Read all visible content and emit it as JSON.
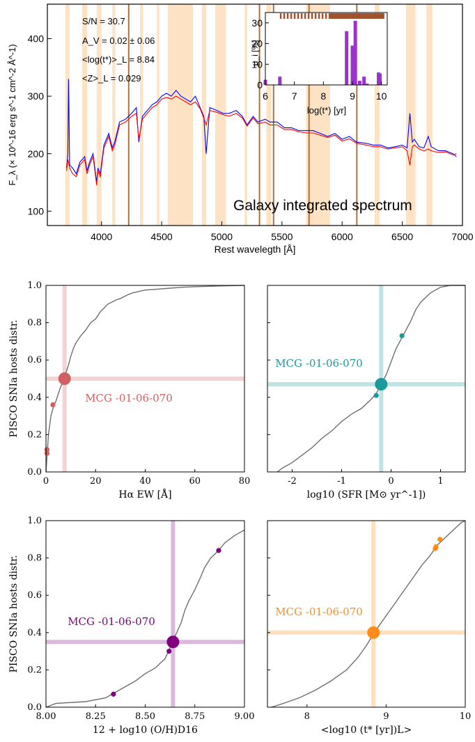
{
  "chart_data": [
    {
      "type": "line",
      "title": "Galaxy integrated spectrum",
      "xlabel": "Rest wavelegth [Å]",
      "ylabel": "F_λ (× 10^-16 erg s^-1 cm^-2 Å^-1)",
      "xlim": [
        3550,
        7000
      ],
      "ylim": [
        75,
        460
      ],
      "xticks": [
        4000,
        4500,
        5000,
        5500,
        6000,
        6500,
        7000
      ],
      "yticks": [
        100,
        200,
        300,
        400
      ],
      "annotations": [
        "S/N = 30.7",
        "A_V = 0.02 ± 0.06",
        "<log(t*)>_L = 8.84",
        "<Z>_L = 0.029"
      ],
      "masked_bands": [
        [
          3700,
          3735
        ],
        [
          3840,
          3880
        ],
        [
          3960,
          4000
        ],
        [
          4090,
          4115
        ],
        [
          4320,
          4345
        ],
        [
          4460,
          4480
        ],
        [
          4550,
          4760
        ],
        [
          4835,
          4870
        ],
        [
          4945,
          5035
        ],
        [
          5190,
          5210
        ],
        [
          5370,
          5410
        ],
        [
          5700,
          5900
        ],
        [
          6270,
          6310
        ],
        [
          6530,
          6610
        ],
        [
          6700,
          6750
        ]
      ],
      "marked_lines": [
        4226,
        5313,
        5430,
        5725,
        6122
      ],
      "series": [
        {
          "name": "",
          "color": "#0000ff",
          "x": [
            3710,
            3720,
            3726,
            3735,
            3760,
            3790,
            3820,
            3860,
            3880,
            3900,
            3930,
            3960,
            3970,
            3990,
            4020,
            4060,
            4090,
            4110,
            4150,
            4200,
            4250,
            4290,
            4310,
            4340,
            4380,
            4420,
            4460,
            4500,
            4540,
            4580,
            4620,
            4660,
            4700,
            4740,
            4780,
            4820,
            4850,
            4870,
            4900,
            4960,
            5010,
            5060,
            5120,
            5170,
            5210,
            5260,
            5300,
            5360,
            5400,
            5460,
            5520,
            5580,
            5640,
            5700,
            5760,
            5820,
            5880,
            5940,
            6000,
            6060,
            6120,
            6200,
            6260,
            6320,
            6380,
            6440,
            6500,
            6540,
            6563,
            6583,
            6600,
            6640,
            6680,
            6716,
            6740,
            6800,
            6860,
            6920,
            6950
          ],
          "y": [
            175,
            200,
            330,
            180,
            175,
            165,
            185,
            195,
            170,
            185,
            200,
            150,
            175,
            165,
            215,
            235,
            210,
            220,
            255,
            260,
            270,
            280,
            220,
            265,
            275,
            285,
            290,
            300,
            305,
            300,
            310,
            300,
            295,
            290,
            300,
            280,
            265,
            200,
            280,
            275,
            270,
            270,
            275,
            265,
            250,
            265,
            255,
            260,
            255,
            255,
            245,
            245,
            240,
            240,
            240,
            235,
            230,
            235,
            225,
            230,
            220,
            218,
            215,
            215,
            210,
            212,
            215,
            210,
            270,
            220,
            225,
            212,
            210,
            230,
            212,
            205,
            205,
            200,
            195
          ]
        },
        {
          "name": "",
          "color": "#ff0000",
          "x": [
            3710,
            3720,
            3726,
            3735,
            3760,
            3790,
            3820,
            3860,
            3880,
            3900,
            3930,
            3960,
            3970,
            3990,
            4020,
            4060,
            4090,
            4110,
            4150,
            4200,
            4250,
            4290,
            4310,
            4340,
            4380,
            4420,
            4460,
            4500,
            4540,
            4580,
            4620,
            4660,
            4700,
            4740,
            4780,
            4820,
            4850,
            4870,
            4900,
            4960,
            5010,
            5060,
            5120,
            5170,
            5210,
            5260,
            5300,
            5360,
            5400,
            5460,
            5520,
            5580,
            5640,
            5700,
            5760,
            5820,
            5880,
            5940,
            6000,
            6060,
            6120,
            6200,
            6260,
            6320,
            6380,
            6440,
            6500,
            6540,
            6563,
            6583,
            6600,
            6640,
            6680,
            6716,
            6740,
            6800,
            6860,
            6920,
            6950
          ],
          "y": [
            170,
            190,
            185,
            175,
            165,
            160,
            180,
            190,
            165,
            180,
            195,
            145,
            170,
            160,
            210,
            230,
            205,
            215,
            250,
            255,
            265,
            270,
            225,
            260,
            270,
            280,
            285,
            295,
            298,
            295,
            300,
            295,
            290,
            285,
            290,
            278,
            262,
            250,
            275,
            272,
            268,
            265,
            270,
            262,
            248,
            262,
            252,
            255,
            250,
            250,
            242,
            242,
            238,
            236,
            236,
            232,
            228,
            232,
            222,
            226,
            218,
            215,
            212,
            212,
            208,
            210,
            212,
            205,
            180,
            212,
            215,
            208,
            205,
            208,
            205,
            202,
            203,
            198,
            200
          ]
        }
      ]
    },
    {
      "type": "bar",
      "xlabel": "log(t*) [yr]",
      "ylabel": "μ_i [%]",
      "xlim": [
        6,
        10.2
      ],
      "ylim": [
        0,
        35
      ],
      "xticks": [
        6,
        7,
        8,
        9,
        10
      ],
      "yticks": [
        0,
        10,
        20,
        30
      ],
      "x": [
        6.0,
        6.5,
        8.8,
        9.0,
        9.1,
        9.25,
        9.4,
        9.5,
        9.9,
        9.95
      ],
      "values": [
        2.5,
        4,
        26,
        19,
        31,
        2,
        4,
        0.6,
        6,
        5.5
      ],
      "color": "#9933cc"
    },
    {
      "type": "line",
      "xlabel": "Hα EW [Å]",
      "ylabel": "PISCO SNIa hosts distr.",
      "xlim": [
        0,
        80
      ],
      "ylim": [
        0,
        1
      ],
      "xticks": [
        0,
        20,
        40,
        60,
        80
      ],
      "yticks": [
        0.0,
        0.2,
        0.4,
        0.6,
        0.8,
        1.0
      ],
      "label": "MCG -01-06-070",
      "color": "#d06060",
      "highlight": [
        7.5,
        0.5
      ],
      "points": [
        [
          2.8,
          0.36
        ],
        [
          0.4,
          0.12
        ],
        [
          0.4,
          0.1
        ]
      ],
      "cdf_x": [
        0,
        0.5,
        1,
        2,
        3,
        4,
        5,
        6,
        7,
        8,
        9,
        10,
        11,
        12,
        14,
        16,
        18,
        20,
        22,
        25,
        28,
        30,
        33,
        35,
        40,
        45,
        50,
        55,
        60,
        70,
        80
      ],
      "cdf_y": [
        0,
        0.1,
        0.2,
        0.3,
        0.35,
        0.38,
        0.42,
        0.46,
        0.48,
        0.53,
        0.57,
        0.62,
        0.66,
        0.69,
        0.73,
        0.76,
        0.8,
        0.82,
        0.86,
        0.9,
        0.92,
        0.93,
        0.95,
        0.96,
        0.975,
        0.98,
        0.985,
        0.99,
        0.993,
        0.997,
        1.0
      ]
    },
    {
      "type": "line",
      "xlabel": "log10 (SFR [M⊙ yr^-1])",
      "ylabel": "",
      "xlim": [
        -2.5,
        1.5
      ],
      "ylim": [
        0,
        1
      ],
      "xticks": [
        -2,
        -1,
        0,
        1
      ],
      "label": "MCG -01-06-070",
      "color": "#1a9a9a",
      "highlight": [
        -0.2,
        0.47
      ],
      "points": [
        [
          0.22,
          0.73
        ],
        [
          -0.3,
          0.41
        ]
      ],
      "cdf_x": [
        -2.3,
        -2.2,
        -2,
        -1.8,
        -1.6,
        -1.4,
        -1.2,
        -1,
        -0.8,
        -0.6,
        -0.4,
        -0.3,
        -0.2,
        -0.1,
        0,
        0.1,
        0.2,
        0.3,
        0.4,
        0.5,
        0.6,
        0.8,
        1.0,
        1.2,
        1.5
      ],
      "cdf_y": [
        0,
        0.02,
        0.05,
        0.09,
        0.13,
        0.18,
        0.22,
        0.27,
        0.31,
        0.34,
        0.39,
        0.42,
        0.47,
        0.52,
        0.59,
        0.66,
        0.71,
        0.76,
        0.81,
        0.87,
        0.91,
        0.96,
        0.99,
        1.0,
        1.0
      ]
    },
    {
      "type": "line",
      "xlabel": "12 + log10 (O/H)D16",
      "ylabel": "PISCO SNIa hosts distr.",
      "xlim": [
        8.0,
        9.0
      ],
      "ylim": [
        0,
        1
      ],
      "xticks": [
        8.0,
        8.25,
        8.5,
        8.75,
        9.0
      ],
      "yticks": [
        0.0,
        0.2,
        0.4,
        0.6,
        0.8,
        1.0
      ],
      "label": "MCG -01-06-070",
      "color": "#800080",
      "highlight": [
        8.64,
        0.35
      ],
      "points": [
        [
          8.87,
          0.84
        ],
        [
          8.62,
          0.3
        ],
        [
          8.34,
          0.07
        ]
      ],
      "cdf_x": [
        8.0,
        8.05,
        8.2,
        8.3,
        8.35,
        8.4,
        8.45,
        8.5,
        8.55,
        8.6,
        8.63,
        8.65,
        8.68,
        8.7,
        8.72,
        8.75,
        8.78,
        8.8,
        8.83,
        8.87,
        8.9,
        8.95,
        9.0
      ],
      "cdf_y": [
        0,
        0.02,
        0.03,
        0.05,
        0.08,
        0.11,
        0.14,
        0.18,
        0.21,
        0.26,
        0.33,
        0.38,
        0.45,
        0.52,
        0.57,
        0.63,
        0.7,
        0.75,
        0.8,
        0.84,
        0.88,
        0.92,
        0.95
      ]
    },
    {
      "type": "line",
      "xlabel": "<log10 (t* [yr])L>",
      "ylabel": "",
      "xlim": [
        7.5,
        10
      ],
      "ylim": [
        0,
        1
      ],
      "xticks": [
        8,
        9,
        10
      ],
      "label": "MCG -01-06-070",
      "color": "#ff8c1a",
      "highlight": [
        8.84,
        0.4
      ],
      "points": [
        [
          9.68,
          0.9
        ],
        [
          9.63,
          0.86
        ],
        [
          9.62,
          0.85
        ]
      ],
      "cdf_x": [
        7.55,
        7.7,
        7.9,
        8.1,
        8.3,
        8.5,
        8.65,
        8.75,
        8.85,
        8.95,
        9.05,
        9.15,
        9.25,
        9.35,
        9.45,
        9.55,
        9.65,
        9.75,
        9.85,
        9.95,
        10.0
      ],
      "cdf_y": [
        0,
        0.02,
        0.05,
        0.09,
        0.14,
        0.2,
        0.27,
        0.33,
        0.4,
        0.46,
        0.52,
        0.58,
        0.64,
        0.7,
        0.76,
        0.81,
        0.87,
        0.91,
        0.95,
        0.99,
        1.0
      ]
    }
  ]
}
